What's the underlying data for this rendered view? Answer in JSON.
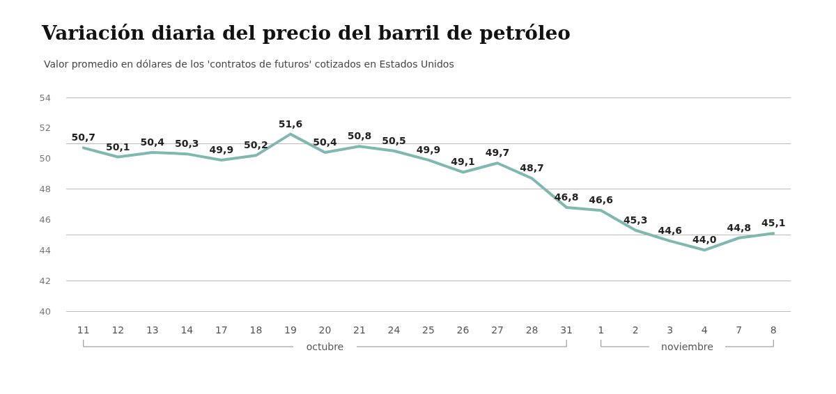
{
  "chart_data": {
    "type": "line",
    "title": "Variación diaria del precio del barril de petróleo",
    "subtitle": "Valor promedio en dólares de los 'contratos de futuros' cotizados en Estados Unidos",
    "categories": [
      "11",
      "12",
      "13",
      "14",
      "17",
      "18",
      "19",
      "20",
      "21",
      "24",
      "25",
      "26",
      "27",
      "28",
      "31",
      "1",
      "2",
      "3",
      "4",
      "7",
      "8"
    ],
    "series": [
      {
        "color": "#7fb8b0",
        "values": [
          50.7,
          50.1,
          50.4,
          50.3,
          49.9,
          50.2,
          51.6,
          50.4,
          50.8,
          50.5,
          49.9,
          49.1,
          49.7,
          48.7,
          46.8,
          46.6,
          45.3,
          44.6,
          44.0,
          44.8,
          45.1
        ],
        "value_labels": [
          "50,7",
          "50,1",
          "50,4",
          "50,3",
          "49,9",
          "50,2",
          "51,6",
          "50,4",
          "50,8",
          "50,5",
          "49,9",
          "49,1",
          "49,7",
          "48,7",
          "46,8",
          "46,6",
          "45,3",
          "44,6",
          "44,0",
          "44,8",
          "45,1"
        ]
      }
    ],
    "annotations": [
      "octubre",
      "noviembre"
    ],
    "ylim": [
      40,
      54
    ],
    "yticks": [
      40,
      42,
      44,
      46,
      48,
      50,
      52,
      54
    ],
    "grid": "y",
    "marker": "none",
    "line_style": "solid"
  }
}
